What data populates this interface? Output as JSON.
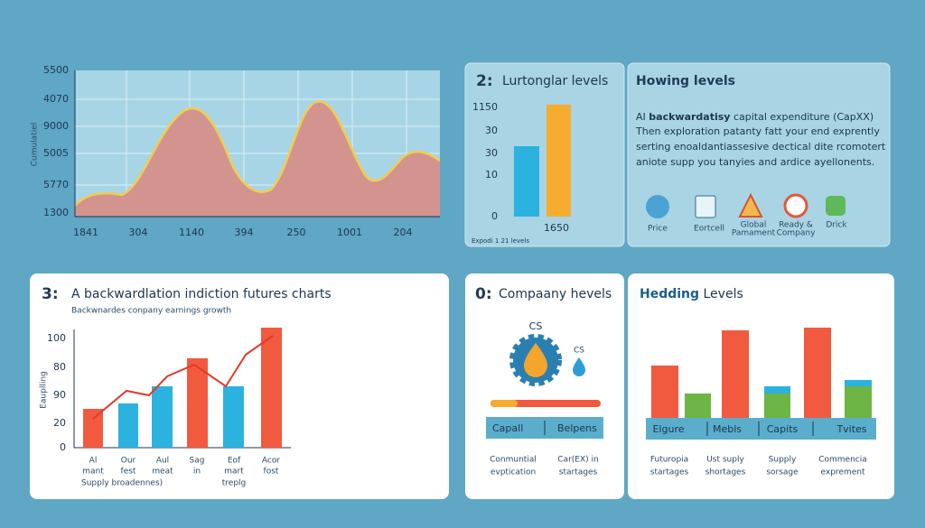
{
  "area_chart": {
    "y_title": "Cumulatiel",
    "y_labels": [
      "5500",
      "4070",
      "9000",
      "5005",
      "5770",
      "1300"
    ],
    "x_labels": [
      "1841",
      "304",
      "1140",
      "394",
      "250",
      "1001",
      "204"
    ]
  },
  "panel2": {
    "number": "2:",
    "title": "Lurtonglar levels",
    "y_labels": [
      "1150",
      "30",
      "30",
      "10",
      "0"
    ],
    "x_label": "1650",
    "footnote": "Expodi 1 21 levels"
  },
  "panel_howing": {
    "title": "Howing levels",
    "lines": [
      [
        "AI",
        "backwardatisy",
        "capital expenditure (CapXX)"
      ],
      "Then exploration patanty fatt your end exprently",
      "serting enoaldantiassesive dectical dite rcomotert",
      "aniote supp you tanyies and ardice ayellonents."
    ],
    "icons": [
      [
        "Price"
      ],
      [
        "Eortcell"
      ],
      [
        "Global",
        "Pamament"
      ],
      [
        "Ready &",
        "Company"
      ],
      [
        "Drick"
      ]
    ]
  },
  "panel3": {
    "number": "3:",
    "title": "A backwardlation indiction futures charts",
    "subtitle": "Backwnardes conpany earnings growth",
    "y_title": "Eauplling",
    "y_labels": [
      "100",
      "80",
      "90",
      "20",
      "0"
    ],
    "x_labels": [
      [
        "Al",
        "mant"
      ],
      [
        "Our",
        "fest"
      ],
      [
        "Aul",
        "meat"
      ],
      [
        "Sag",
        "in"
      ],
      [
        "Eof",
        "mart",
        "treplg"
      ],
      [
        "Acor",
        "fost"
      ]
    ],
    "footnote": "Supply broadennes)"
  },
  "panel4": {
    "number": "0:",
    "title": "Compaany hevels",
    "icon_label": "CS",
    "small_label": "CS",
    "strip": [
      "Capall",
      "Belpens"
    ],
    "captions": [
      [
        "Conmuntial",
        "evptication"
      ],
      [
        "Car(EX) in",
        "startages"
      ]
    ]
  },
  "panel5": {
    "title": [
      "Hedding",
      "Levels"
    ],
    "strip": [
      "Elgure",
      "Mebls",
      "Capits",
      "Tvites"
    ],
    "captions": [
      [
        "Futuropia",
        "startages"
      ],
      [
        "Ust suply",
        "shortages"
      ],
      [
        "Supply",
        "sorsage"
      ],
      [
        "Commencia",
        "exprement"
      ]
    ]
  }
}
